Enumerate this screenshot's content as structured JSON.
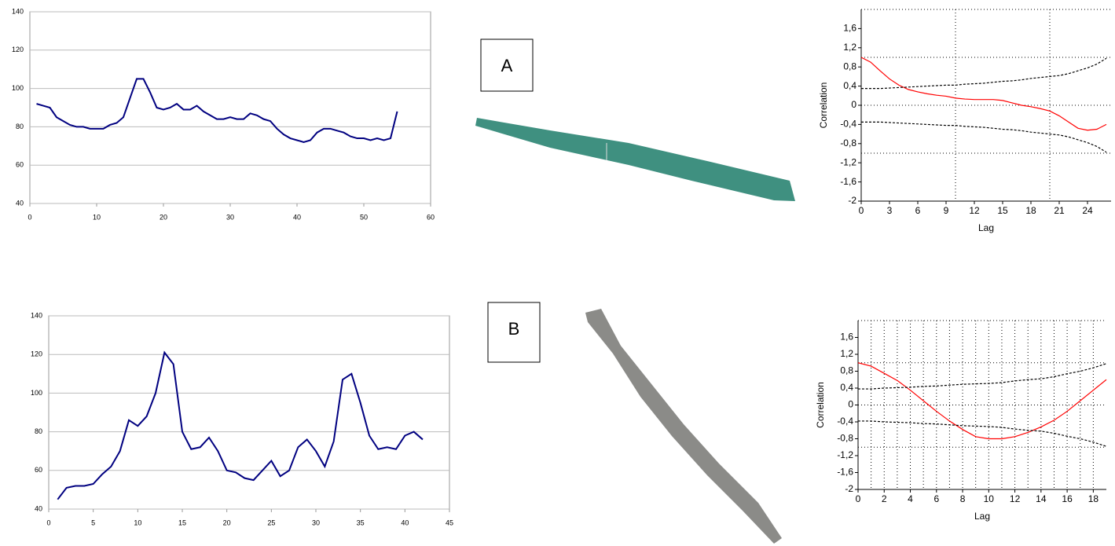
{
  "panels": [
    {
      "label": "A"
    },
    {
      "label": "B"
    }
  ],
  "chart_data": [
    {
      "type": "line",
      "x": [
        1,
        2,
        3,
        4,
        5,
        6,
        7,
        8,
        9,
        10,
        11,
        12,
        13,
        14,
        15,
        16,
        17,
        18,
        19,
        20,
        21,
        22,
        23,
        24,
        25,
        26,
        27,
        28,
        29,
        30,
        31,
        32,
        33,
        34,
        35,
        36,
        37,
        38,
        39,
        40,
        41,
        42,
        43,
        44,
        45,
        46,
        47,
        48,
        49,
        50,
        51,
        52,
        53,
        54,
        55
      ],
      "series": [
        {
          "color": "#000080",
          "values": [
            92,
            91,
            90,
            85,
            83,
            81,
            80,
            80,
            79,
            79,
            79,
            81,
            82,
            85,
            95,
            105,
            105,
            98,
            90,
            89,
            90,
            92,
            89,
            89,
            91,
            88,
            86,
            84,
            84,
            85,
            84,
            84,
            87,
            86,
            84,
            83,
            79,
            76,
            74,
            73,
            72,
            73,
            77,
            79,
            79,
            78,
            77,
            75,
            74,
            74,
            73,
            74,
            73,
            74,
            88
          ]
        }
      ],
      "xlim": [
        0,
        60
      ],
      "xticks": [
        0,
        10,
        20,
        30,
        40,
        50,
        60
      ],
      "ylim": [
        40,
        140
      ],
      "yticks": [
        40,
        60,
        80,
        100,
        120,
        140
      ],
      "grid": true
    },
    {
      "type": "line",
      "x": [
        1,
        2,
        3,
        4,
        5,
        6,
        7,
        8,
        9,
        10,
        11,
        12,
        13,
        14,
        15,
        16,
        17,
        18,
        19,
        20,
        21,
        22,
        23,
        24,
        25,
        26,
        27,
        28,
        29,
        30,
        31,
        32,
        33,
        34,
        35,
        36,
        37,
        38,
        39,
        40,
        41,
        42
      ],
      "series": [
        {
          "color": "#000080",
          "values": [
            45,
            51,
            52,
            52,
            53,
            58,
            62,
            70,
            86,
            83,
            88,
            100,
            121,
            115,
            80,
            71,
            72,
            77,
            70,
            60,
            59,
            56,
            55,
            60,
            65,
            57,
            60,
            72,
            76,
            70,
            62,
            75,
            107,
            110,
            95,
            78,
            71,
            72,
            71,
            78,
            80,
            76
          ]
        }
      ],
      "xlim": [
        0,
        45
      ],
      "xticks": [
        0,
        5,
        10,
        15,
        20,
        25,
        30,
        35,
        40,
        45
      ],
      "ylim": [
        40,
        140
      ],
      "yticks": [
        40,
        60,
        80,
        100,
        120,
        140
      ],
      "grid": true
    },
    {
      "type": "line",
      "xlabel": "Lag",
      "ylabel": "Correlation",
      "x": [
        0,
        1,
        2,
        3,
        4,
        5,
        6,
        7,
        8,
        9,
        10,
        11,
        12,
        13,
        14,
        15,
        16,
        17,
        18,
        19,
        20,
        21,
        22,
        23,
        24,
        25,
        26
      ],
      "series": [
        {
          "color": "#ff0000",
          "style": "solid",
          "values": [
            1,
            0.9,
            0.72,
            0.55,
            0.42,
            0.33,
            0.28,
            0.24,
            0.21,
            0.19,
            0.15,
            0.13,
            0.12,
            0.12,
            0.12,
            0.1,
            0.05,
            0,
            -0.03,
            -0.07,
            -0.12,
            -0.22,
            -0.35,
            -0.48,
            -0.52,
            -0.5,
            -0.4
          ]
        },
        {
          "color": "#000000",
          "style": "dashed",
          "values": [
            0.35,
            0.35,
            0.35,
            0.36,
            0.37,
            0.38,
            0.39,
            0.4,
            0.41,
            0.42,
            0.42,
            0.44,
            0.45,
            0.46,
            0.48,
            0.5,
            0.51,
            0.53,
            0.56,
            0.58,
            0.6,
            0.62,
            0.66,
            0.72,
            0.78,
            0.86,
            0.98
          ]
        },
        {
          "color": "#000000",
          "style": "dashed",
          "values": [
            -0.35,
            -0.35,
            -0.35,
            -0.36,
            -0.37,
            -0.38,
            -0.39,
            -0.4,
            -0.41,
            -0.42,
            -0.42,
            -0.44,
            -0.45,
            -0.46,
            -0.48,
            -0.5,
            -0.51,
            -0.53,
            -0.56,
            -0.58,
            -0.6,
            -0.62,
            -0.66,
            -0.72,
            -0.78,
            -0.86,
            -0.98
          ]
        }
      ],
      "xlim": [
        0,
        26.5
      ],
      "xticks": [
        0,
        3,
        6,
        9,
        12,
        15,
        18,
        21,
        24
      ],
      "ylim": [
        -2,
        2
      ],
      "yticks": [
        -2,
        {
          "value": -1.6,
          "label": "-1,6"
        },
        {
          "value": -1.2,
          "label": "-1,2"
        },
        {
          "value": -0.8,
          "label": "-0,8"
        },
        {
          "value": -0.4,
          "label": "-0,4"
        },
        0,
        {
          "value": 0.4,
          "label": "0,4"
        },
        {
          "value": 0.8,
          "label": "0,8"
        },
        {
          "value": 1.2,
          "label": "1,2"
        },
        {
          "value": 1.6,
          "label": "1,6"
        }
      ],
      "xgrid": [
        10,
        20
      ],
      "ygrid": [
        2,
        1,
        0,
        -1
      ]
    },
    {
      "type": "line",
      "xlabel": "Lag",
      "ylabel": "Correlation",
      "x": [
        0,
        1,
        2,
        3,
        4,
        5,
        6,
        7,
        8,
        9,
        10,
        11,
        12,
        13,
        14,
        15,
        16,
        17,
        18,
        19
      ],
      "series": [
        {
          "color": "#ff0000",
          "style": "solid",
          "values": [
            1,
            0.92,
            0.75,
            0.58,
            0.35,
            0.1,
            -0.15,
            -0.38,
            -0.58,
            -0.75,
            -0.8,
            -0.8,
            -0.75,
            -0.65,
            -0.52,
            -0.36,
            -0.15,
            0.1,
            0.35,
            0.6
          ]
        },
        {
          "color": "#000000",
          "style": "dashed",
          "values": [
            0.38,
            0.38,
            0.4,
            0.41,
            0.42,
            0.44,
            0.45,
            0.47,
            0.49,
            0.5,
            0.51,
            0.53,
            0.57,
            0.6,
            0.62,
            0.67,
            0.74,
            0.8,
            0.88,
            0.98
          ]
        },
        {
          "color": "#000000",
          "style": "dashed",
          "values": [
            -0.38,
            -0.38,
            -0.4,
            -0.41,
            -0.42,
            -0.44,
            -0.45,
            -0.47,
            -0.49,
            -0.5,
            -0.51,
            -0.53,
            -0.57,
            -0.6,
            -0.62,
            -0.67,
            -0.74,
            -0.8,
            -0.88,
            -0.98
          ]
        }
      ],
      "xlim": [
        0,
        19
      ],
      "xticks": [
        0,
        2,
        4,
        6,
        8,
        10,
        12,
        14,
        16,
        18
      ],
      "ylim": [
        -2,
        2
      ],
      "yticks": [
        -2,
        {
          "value": -1.6,
          "label": "-1,6"
        },
        {
          "value": -1.2,
          "label": "-1,2"
        },
        {
          "value": -0.8,
          "label": "-0,8"
        },
        {
          "value": -0.4,
          "label": "-0,4"
        },
        0,
        {
          "value": 0.4,
          "label": "0,4"
        },
        {
          "value": 0.8,
          "label": "0,8"
        },
        {
          "value": 1.2,
          "label": "1,2"
        },
        {
          "value": 1.6,
          "label": "1,6"
        }
      ],
      "xgrid": [
        1,
        2,
        3,
        4,
        5,
        6,
        7,
        8,
        9,
        10,
        11,
        12,
        13,
        14,
        15,
        16,
        17,
        18
      ],
      "ygrid": [
        2,
        1,
        0,
        -1
      ]
    }
  ]
}
